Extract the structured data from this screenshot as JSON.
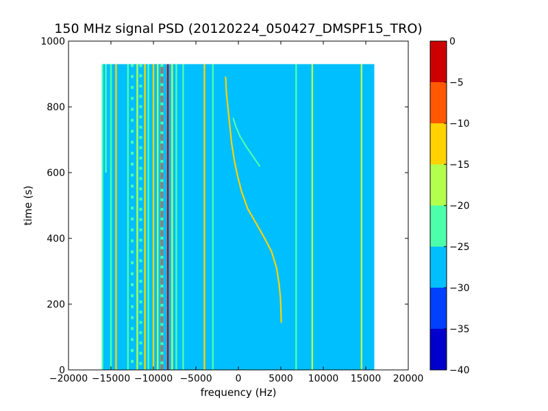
{
  "chart_data": {
    "type": "heatmap",
    "title": "150 MHz signal PSD (20120224_050427_DMSPF15_TRO)",
    "xlabel": "frequency (Hz)",
    "ylabel": "time (s)",
    "xlim": [
      -20000,
      20000
    ],
    "ylim": [
      0,
      1000
    ],
    "x_ticks": [
      -20000,
      -15000,
      -10000,
      -5000,
      0,
      5000,
      10000,
      15000,
      20000
    ],
    "x_tick_labels": [
      "−20000",
      "−15000",
      "−10000",
      "−5000",
      "0",
      "5000",
      "10000",
      "15000",
      "20000"
    ],
    "y_ticks": [
      0,
      200,
      400,
      600,
      800,
      1000
    ],
    "y_tick_labels": [
      "0",
      "200",
      "400",
      "600",
      "800",
      "1000"
    ],
    "data_extent": {
      "freq_min": -16000,
      "freq_max": 16000,
      "time_min": 0,
      "time_max": 930
    },
    "background_level": -27.5,
    "colorbar": {
      "min": -40,
      "max": 0,
      "ticks": [
        0,
        -5,
        -10,
        -15,
        -20,
        -25,
        -30,
        -35,
        -40
      ],
      "tick_labels": [
        "0",
        "−5",
        "−10",
        "−15",
        "−20",
        "−25",
        "−30",
        "−35",
        "−40"
      ],
      "levels": [
        {
          "from": -40,
          "to": -35,
          "color": "#0000cd"
        },
        {
          "from": -35,
          "to": -30,
          "color": "#0040ff"
        },
        {
          "from": -30,
          "to": -25,
          "color": "#00bfff"
        },
        {
          "from": -25,
          "to": -20,
          "color": "#4dffaa"
        },
        {
          "from": -20,
          "to": -15,
          "color": "#b3ff4d"
        },
        {
          "from": -15,
          "to": -10,
          "color": "#ffd200"
        },
        {
          "from": -10,
          "to": -5,
          "color": "#ff5800"
        },
        {
          "from": -5,
          "to": 0,
          "color": "#cd0000"
        }
      ]
    },
    "vertical_lines": [
      {
        "freq": -16000,
        "level": -22,
        "t_from": 0,
        "t_to": 930
      },
      {
        "freq": -15600,
        "level": -22,
        "t_from": 600,
        "t_to": 930
      },
      {
        "freq": -15000,
        "level": -22,
        "t_from": 0,
        "t_to": 930
      },
      {
        "freq": -14400,
        "level": -12,
        "t_from": 0,
        "t_to": 930
      },
      {
        "freq": -13000,
        "level": -22,
        "t_from": 0,
        "t_to": 930
      },
      {
        "freq": -11900,
        "level": -17,
        "t_from": 0,
        "t_to": 930
      },
      {
        "freq": -11000,
        "level": -12,
        "t_from": 0,
        "t_to": 930
      },
      {
        "freq": -10600,
        "level": -22,
        "t_from": 0,
        "t_to": 930
      },
      {
        "freq": -10000,
        "level": -12,
        "t_from": 0,
        "t_to": 930
      },
      {
        "freq": -9500,
        "level": -17,
        "t_from": 0,
        "t_to": 930
      },
      {
        "freq": -9000,
        "level": -7,
        "t_from": 0,
        "t_to": 930
      },
      {
        "freq": -8300,
        "level": -3,
        "t_from": 0,
        "t_to": 930
      },
      {
        "freq": -7800,
        "level": -17,
        "t_from": 0,
        "t_to": 930
      },
      {
        "freq": -7300,
        "level": -22,
        "t_from": 0,
        "t_to": 930
      },
      {
        "freq": -6500,
        "level": -22,
        "t_from": 0,
        "t_to": 930
      },
      {
        "freq": -4000,
        "level": -12,
        "t_from": 0,
        "t_to": 930
      },
      {
        "freq": -3000,
        "level": -22,
        "t_from": 0,
        "t_to": 930
      },
      {
        "freq": 6800,
        "level": -22,
        "t_from": 0,
        "t_to": 930
      },
      {
        "freq": 8700,
        "level": -17,
        "t_from": 0,
        "t_to": 930
      },
      {
        "freq": 14500,
        "level": -17,
        "t_from": 0,
        "t_to": 930
      }
    ],
    "dotted_lines": [
      {
        "freq": -9000,
        "level": -22,
        "spacing": 20
      },
      {
        "freq": -11500,
        "level": -22,
        "spacing": 22
      },
      {
        "freq": -12500,
        "level": -22,
        "spacing": 24
      }
    ],
    "curves": [
      {
        "name": "",
        "level": -12,
        "points": [
          [
            -1500,
            890
          ],
          [
            -1400,
            840
          ],
          [
            -1200,
            790
          ],
          [
            -1000,
            740
          ],
          [
            -800,
            690
          ],
          [
            -500,
            640
          ],
          [
            -100,
            590
          ],
          [
            400,
            540
          ],
          [
            1100,
            490
          ],
          [
            2000,
            450
          ],
          [
            3100,
            400
          ],
          [
            3900,
            360
          ],
          [
            4500,
            310
          ],
          [
            4800,
            260
          ],
          [
            4950,
            220
          ],
          [
            5000,
            190
          ],
          [
            5050,
            145
          ]
        ]
      },
      {
        "name": "",
        "level": -22,
        "points": [
          [
            -600,
            765
          ],
          [
            -300,
            740
          ],
          [
            200,
            710
          ],
          [
            900,
            680
          ],
          [
            1700,
            650
          ],
          [
            2500,
            620
          ]
        ]
      }
    ]
  }
}
